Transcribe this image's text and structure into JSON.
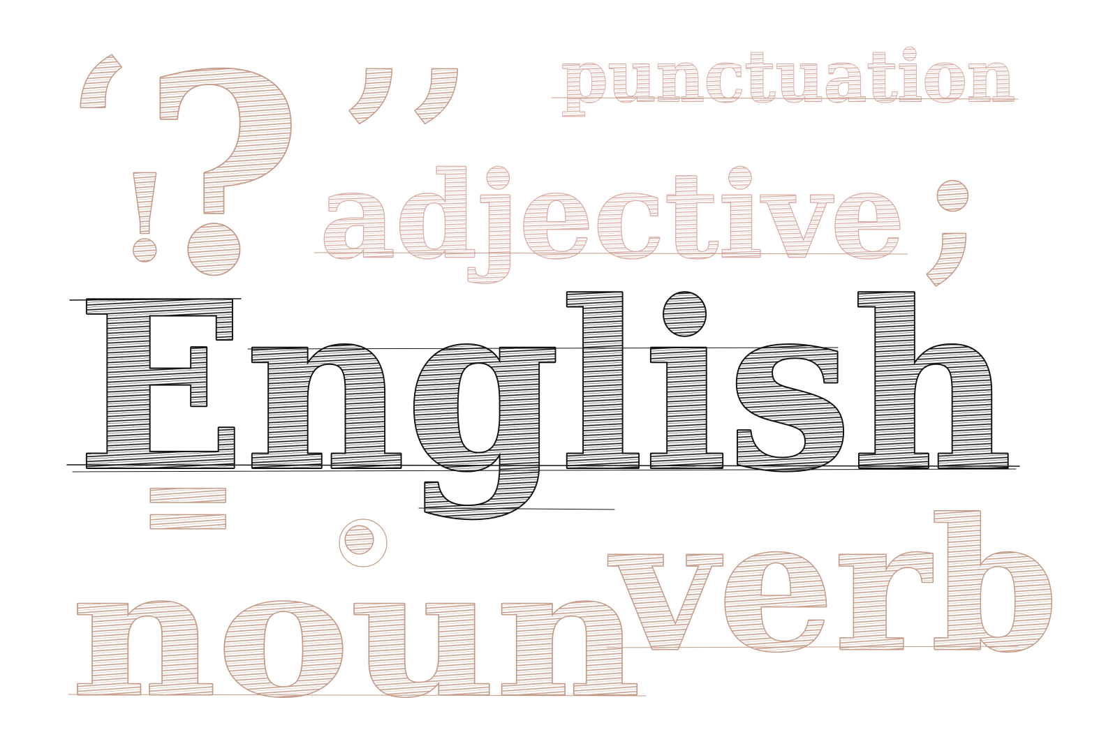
{
  "words": {
    "main": "English",
    "punctuation": "punctuation",
    "adjective": "adjective",
    "noun": "noun",
    "verb": "verb"
  },
  "symbols": {
    "open_quote": "‘",
    "question": "?",
    "exclamation": "!",
    "close_quotes": "’’",
    "colon": ":",
    "semicolon": ";",
    "equals": "=",
    "period": "."
  },
  "colors": {
    "ink": "#111111",
    "rose": "#c49a87",
    "rose_light": "#d8aaa3",
    "background": "#ffffff"
  }
}
